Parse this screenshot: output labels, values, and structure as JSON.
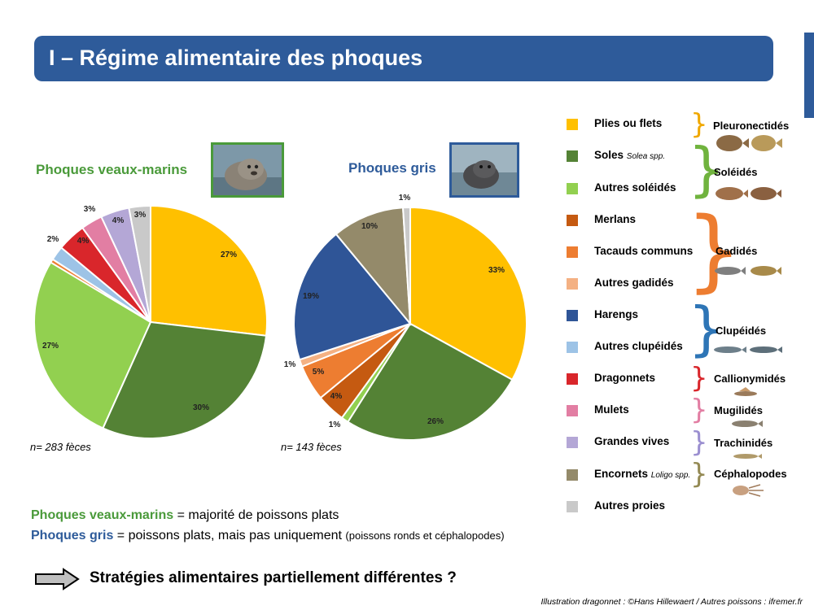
{
  "header": {
    "title": "I – Régime alimentaire des phoques"
  },
  "chart_titles": {
    "left": "Phoques veaux-marins",
    "right": "Phoques gris"
  },
  "colors": {
    "title_bar": "#2e5b9a",
    "veaux_marins": "#4a9a3a",
    "gris": "#2e5b9a"
  },
  "legend": [
    {
      "label": "Plies ou flets",
      "color": "#ffc000"
    },
    {
      "label": "Soles",
      "italic": "Solea",
      "suffix": " spp.",
      "color": "#548235"
    },
    {
      "label": "Autres soléidés",
      "color": "#92d050"
    },
    {
      "label": "Merlans",
      "color": "#c55a11"
    },
    {
      "label": "Tacauds communs",
      "color": "#ed7d31"
    },
    {
      "label": "Autres gadidés",
      "color": "#f4b183"
    },
    {
      "label": "Harengs",
      "color": "#2f5597"
    },
    {
      "label": "Autres clupéidés",
      "color": "#9dc3e6"
    },
    {
      "label": "Dragonnets",
      "color": "#d9262b"
    },
    {
      "label": "Mulets",
      "color": "#e27ea3"
    },
    {
      "label": "Grandes vives",
      "color": "#b4a7d6"
    },
    {
      "label": "Encornets",
      "italic": "Loligo",
      "suffix": " spp.",
      "color": "#948a6a"
    },
    {
      "label": "Autres proies",
      "color": "#c9c9c9"
    }
  ],
  "families": [
    {
      "name": "Pleuronectidés",
      "color": "#f0a800"
    },
    {
      "name": "Soléidés",
      "color": "#70b33e"
    },
    {
      "name": "Gadidés",
      "color": "#ed7d31"
    },
    {
      "name": "Clupéidés",
      "color": "#2e75b6"
    },
    {
      "name": "Callionymidés",
      "color": "#d9262b"
    },
    {
      "name": "Mugilidés",
      "color": "#e27ea3"
    },
    {
      "name": "Trachinidés",
      "color": "#9b8fd0"
    },
    {
      "name": "Céphalopodes",
      "color": "#948a54"
    }
  ],
  "chart_data": [
    {
      "type": "pie",
      "title": "Phoques veaux-marins",
      "n": "n= 283 fèces",
      "slices": [
        {
          "label": "Plies ou flets",
          "value": 27,
          "text": "27%",
          "color": "#ffc000"
        },
        {
          "label": "Soles Solea spp.",
          "value": 30,
          "text": "30%",
          "color": "#548235"
        },
        {
          "label": "Autres soléidés",
          "value": 27,
          "text": "27%",
          "color": "#92d050"
        },
        {
          "label": "Tacauds communs",
          "value": 0.5,
          "text": "",
          "color": "#ed7d31"
        },
        {
          "label": "Autres clupéidés",
          "value": 2,
          "text": "2%",
          "color": "#9dc3e6"
        },
        {
          "label": "Dragonnets",
          "value": 4,
          "text": "4%",
          "color": "#d9262b"
        },
        {
          "label": "Mulets",
          "value": 3,
          "text": "3%",
          "color": "#e27ea3"
        },
        {
          "label": "Grandes vives",
          "value": 4,
          "text": "4%",
          "color": "#b4a7d6"
        },
        {
          "label": "Autres proies",
          "value": 3,
          "text": "3%",
          "color": "#c9c9c9"
        }
      ]
    },
    {
      "type": "pie",
      "title": "Phoques gris",
      "n": "n= 143 fèces",
      "slices": [
        {
          "label": "Plies ou flets",
          "value": 33,
          "text": "33%",
          "color": "#ffc000"
        },
        {
          "label": "Soles Solea spp.",
          "value": 26,
          "text": "26%",
          "color": "#548235"
        },
        {
          "label": "Autres soléidés",
          "value": 1,
          "text": "1%",
          "color": "#92d050"
        },
        {
          "label": "Merlans",
          "value": 4,
          "text": "4%",
          "color": "#c55a11"
        },
        {
          "label": "Tacauds communs",
          "value": 5,
          "text": "5%",
          "color": "#ed7d31"
        },
        {
          "label": "Autres gadidés",
          "value": 1,
          "text": "1%",
          "color": "#f4b183"
        },
        {
          "label": "Harengs",
          "value": 19,
          "text": "19%",
          "color": "#2f5597"
        },
        {
          "label": "Encornets Loligo spp.",
          "value": 10,
          "text": "10%",
          "color": "#948a6a"
        },
        {
          "label": "Autres proies",
          "value": 1,
          "text": "1%",
          "color": "#c9c9c9"
        }
      ]
    }
  ],
  "summary": {
    "line1_bold": "Phoques veaux-marins",
    "line1_rest": " = majorité de poissons plats",
    "line2_bold": "Phoques gris",
    "line2_rest": " = poissons plats, mais pas uniquement ",
    "line2_small": "(poissons ronds et céphalopodes)"
  },
  "conclusion": "Stratégies alimentaires partiellement différentes ?",
  "credits": "Illustration dragonnet : ©Hans Hillewaert  /  Autres poissons : ifremer.fr"
}
